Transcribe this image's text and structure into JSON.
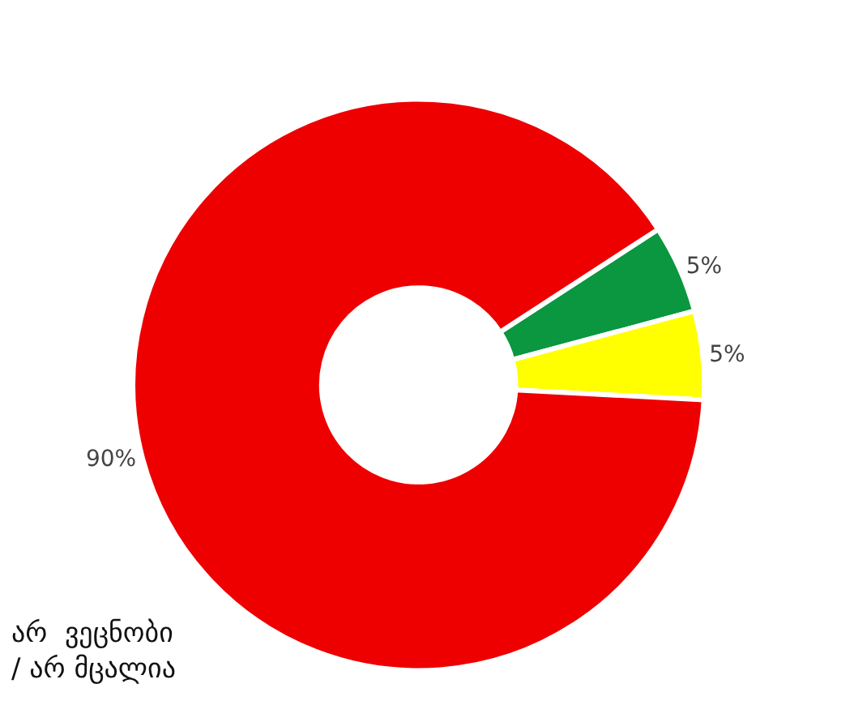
{
  "chart_data": {
    "type": "donut",
    "categories": [
      null,
      null,
      null
    ],
    "values": [
      5,
      5,
      90
    ],
    "colors": [
      "#0b9640",
      "#ffff00",
      "#ee0000"
    ],
    "value_labels": [
      "5%",
      "5%",
      "90%"
    ],
    "annotations": [
      "არ  ვეცნობი\n/ არ მცალია"
    ],
    "legend": false
  }
}
